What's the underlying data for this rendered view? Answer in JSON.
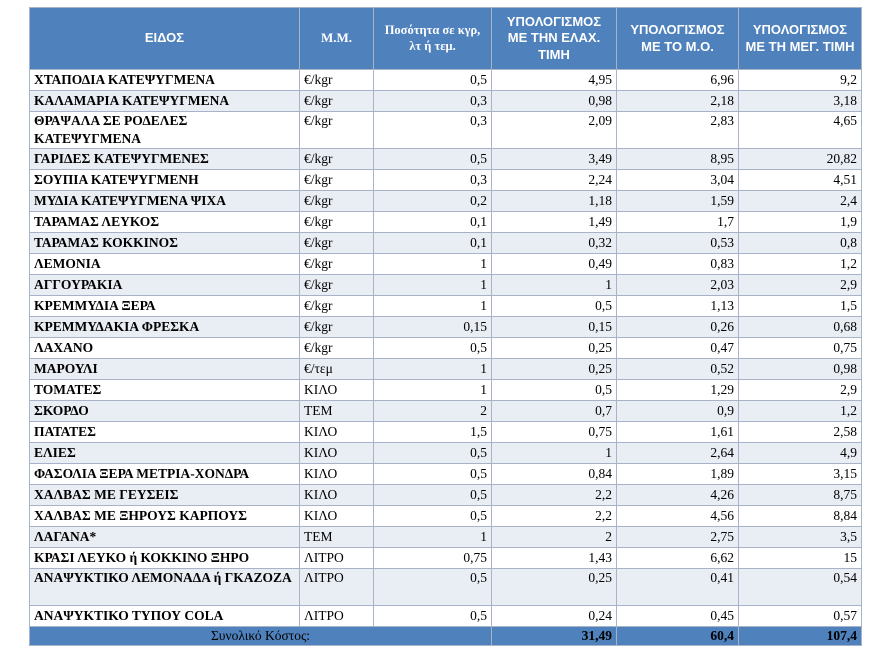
{
  "headers": {
    "item": "ΕΙΔΟΣ",
    "unit": "Μ.Μ.",
    "qty": "Ποσότητα σε κγρ, λτ ή τεμ.",
    "min": "ΥΠΟΛΟΓΙΣΜΟΣ ΜΕ ΤΗΝ ΕΛΑΧ. ΤΙΜΗ",
    "avg": "ΥΠΟΛΟΓΙΣΜΟΣ ΜΕ ΤΟ Μ.Ο.",
    "max": "ΥΠΟΛΟΓΙΣΜΟΣ ΜΕ ΤΗ ΜΕΓ. ΤΙΜΗ"
  },
  "rows": [
    {
      "item": "ΧΤΑΠΟΔΙΑ ΚΑΤΕΨΥΓΜΕΝΑ",
      "unit": "€/kgr",
      "qty": "0,5",
      "min": "4,95",
      "avg": "6,96",
      "max": "9,2"
    },
    {
      "item": "ΚΑΛΑΜΑΡΙΑ ΚΑΤΕΨΥΓΜΕΝΑ",
      "unit": "€/kgr",
      "qty": "0,3",
      "min": "0,98",
      "avg": "2,18",
      "max": "3,18"
    },
    {
      "item": "ΘΡΑΨΑΛΑ ΣΕ ΡΟΔΕΛΕΣ ΚΑΤΕΨΥΓΜΕΝΑ",
      "unit": "€/kgr",
      "qty": "0,3",
      "min": "2,09",
      "avg": "2,83",
      "max": "4,65"
    },
    {
      "item": "ΓΑΡΙΔΕΣ ΚΑΤΕΨΥΓΜΕΝΕΣ",
      "unit": "€/kgr",
      "qty": "0,5",
      "min": "3,49",
      "avg": "8,95",
      "max": "20,82"
    },
    {
      "item": "ΣΟΥΠΙΑ ΚΑΤΕΨΥΓΜΕΝΗ",
      "unit": "€/kgr",
      "qty": "0,3",
      "min": "2,24",
      "avg": "3,04",
      "max": "4,51"
    },
    {
      "item": "ΜΥΔΙΑ ΚΑΤΕΨΥΓΜΕΝΑ ΨΙΧΑ",
      "unit": "€/kgr",
      "qty": "0,2",
      "min": "1,18",
      "avg": "1,59",
      "max": "2,4"
    },
    {
      "item": "ΤΑΡΑΜΑΣ ΛΕΥΚΟΣ",
      "unit": "€/kgr",
      "qty": "0,1",
      "min": "1,49",
      "avg": "1,7",
      "max": "1,9"
    },
    {
      "item": "ΤΑΡΑΜΑΣ ΚΟΚΚΙΝΟΣ",
      "unit": "€/kgr",
      "qty": "0,1",
      "min": "0,32",
      "avg": "0,53",
      "max": "0,8"
    },
    {
      "item": "ΛΕΜΟΝΙΑ",
      "unit": "€/kgr",
      "qty": "1",
      "min": "0,49",
      "avg": "0,83",
      "max": "1,2"
    },
    {
      "item": "ΑΓΓΟΥΡΑΚΙΑ",
      "unit": "€/kgr",
      "qty": "1",
      "min": "1",
      "avg": "2,03",
      "max": "2,9"
    },
    {
      "item": "ΚΡΕΜΜΥΔΙΑ ΞΕΡΑ",
      "unit": "€/kgr",
      "qty": "1",
      "min": "0,5",
      "avg": "1,13",
      "max": "1,5"
    },
    {
      "item": "ΚΡΕΜΜΥΔΑΚΙΑ ΦΡΕΣΚΑ",
      "unit": "€/kgr",
      "qty": "0,15",
      "min": "0,15",
      "avg": "0,26",
      "max": "0,68"
    },
    {
      "item": "ΛΑΧΑΝΟ",
      "unit": "€/kgr",
      "qty": "0,5",
      "min": "0,25",
      "avg": "0,47",
      "max": "0,75"
    },
    {
      "item": "ΜΑΡΟΥΛΙ",
      "unit": "€/τεμ",
      "qty": "1",
      "min": "0,25",
      "avg": "0,52",
      "max": "0,98"
    },
    {
      "item": "ΤΟΜΑΤΕΣ",
      "unit": "ΚΙΛΟ",
      "qty": "1",
      "min": "0,5",
      "avg": "1,29",
      "max": "2,9"
    },
    {
      "item": "ΣΚΟΡΔΟ",
      "unit": "ΤΕΜ",
      "qty": "2",
      "min": "0,7",
      "avg": "0,9",
      "max": "1,2"
    },
    {
      "item": "ΠΑΤΑΤΕΣ",
      "unit": "ΚΙΛΟ",
      "qty": "1,5",
      "min": "0,75",
      "avg": "1,61",
      "max": "2,58"
    },
    {
      "item": "ΕΛΙΕΣ",
      "unit": "ΚΙΛΟ",
      "qty": "0,5",
      "min": "1",
      "avg": "2,64",
      "max": "4,9"
    },
    {
      "item": "ΦΑΣΟΛΙΑ ΞΕΡΑ ΜΕΤΡΙΑ-ΧΟΝΔΡΑ",
      "unit": "ΚΙΛΟ",
      "qty": "0,5",
      "min": "0,84",
      "avg": "1,89",
      "max": "3,15"
    },
    {
      "item": "ΧΑΛΒΑΣ ΜΕ ΓΕΥΣΕΙΣ",
      "unit": "ΚΙΛΟ",
      "qty": "0,5",
      "min": "2,2",
      "avg": "4,26",
      "max": "8,75"
    },
    {
      "item": "ΧΑΛΒΑΣ ΜΕ ΞΗΡΟΥΣ ΚΑΡΠΟΥΣ",
      "unit": "ΚΙΛΟ",
      "qty": "0,5",
      "min": "2,2",
      "avg": "4,56",
      "max": "8,84"
    },
    {
      "item": "ΛΑΓΑΝΑ*",
      "unit": "ΤΕΜ",
      "qty": "1",
      "min": "2",
      "avg": "2,75",
      "max": "3,5"
    },
    {
      "item": "ΚΡΑΣΙ ΛΕΥΚΟ ή ΚΟΚΚΙΝΟ ΞΗΡΟ",
      "unit": "ΛΙΤΡΟ",
      "qty": "0,75",
      "min": "1,43",
      "avg": "6,62",
      "max": "15"
    },
    {
      "item": "ΑΝΑΨΥΚΤΙΚΟ ΛΕΜΟΝΑΔΑ ή ΓΚΑΖΟΖΑ",
      "unit": "ΛΙΤΡΟ",
      "qty": "0,5",
      "min": "0,25",
      "avg": "0,41",
      "max": "0,54"
    },
    {
      "item": "ΑΝΑΨΥΚΤΙΚΟ ΤΥΠΟΥ COLA",
      "unit": "ΛΙΤΡΟ",
      "qty": "0,5",
      "min": "0,24",
      "avg": "0,45",
      "max": "0,57"
    }
  ],
  "total": {
    "label": "Συνολικό Κόστος:",
    "min": "31,49",
    "avg": "60,4",
    "max": "107,4"
  }
}
